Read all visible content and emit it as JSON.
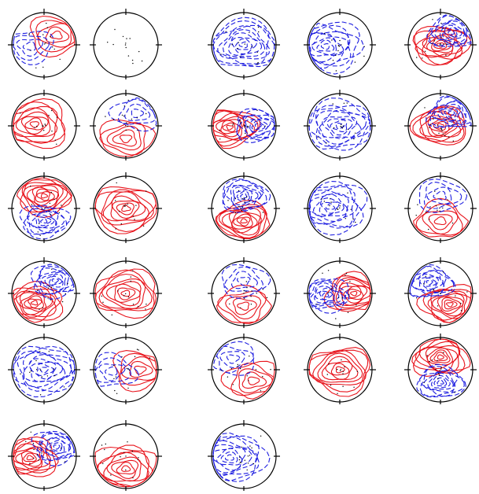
{
  "figure": {
    "background": "#ffffff",
    "outline_color": "#000000",
    "colors": {
      "positive": "#e8131b",
      "negative": "#1d1de0"
    },
    "line_styles": {
      "positive": "solid",
      "negative": "dashed"
    }
  },
  "maps": [
    {
      "pattern": "mixed",
      "pos": "right-top",
      "neg": "left"
    },
    {
      "pattern": "flat"
    },
    {
      "pattern": "negative",
      "neg": "center"
    },
    {
      "pattern": "negative",
      "neg": "left"
    },
    {
      "pattern": "dipole",
      "pos": "center",
      "neg": "top-right"
    },
    {
      "pattern": "positive",
      "pos": "center-left"
    },
    {
      "pattern": "mixed",
      "pos": "bottom",
      "neg": "top-right"
    },
    {
      "pattern": "dipole",
      "pos": "left",
      "neg": "right"
    },
    {
      "pattern": "negative",
      "neg": "center"
    },
    {
      "pattern": "dipole",
      "pos": "center",
      "neg": "top-right"
    },
    {
      "pattern": "dipole",
      "pos": "top",
      "neg": "bottom"
    },
    {
      "pattern": "positive",
      "pos": "center"
    },
    {
      "pattern": "dipole",
      "pos": "bottom",
      "neg": "top"
    },
    {
      "pattern": "negative",
      "neg": "center-left"
    },
    {
      "pattern": "mixed",
      "pos": "bottom",
      "neg": "top"
    },
    {
      "pattern": "dipole",
      "pos": "left-bottom",
      "neg": "top-right"
    },
    {
      "pattern": "positive",
      "pos": "center"
    },
    {
      "pattern": "mixed",
      "pos": "bottom",
      "neg": "top"
    },
    {
      "pattern": "dipole",
      "pos": "right",
      "neg": "left"
    },
    {
      "pattern": "dipole",
      "pos": "bottom-right",
      "neg": "top-left"
    },
    {
      "pattern": "negative",
      "neg": "center"
    },
    {
      "pattern": "mixed",
      "pos": "right",
      "neg": "left"
    },
    {
      "pattern": "mixed",
      "pos": "bottom-right",
      "neg": "top-left"
    },
    {
      "pattern": "positive",
      "pos": "center"
    },
    {
      "pattern": "dipole",
      "pos": "top",
      "neg": "bottom"
    },
    {
      "pattern": "dipole",
      "pos": "left",
      "neg": "right-top"
    },
    {
      "pattern": "positive",
      "pos": "bottom"
    },
    {
      "pattern": "negative",
      "neg": "left"
    }
  ]
}
